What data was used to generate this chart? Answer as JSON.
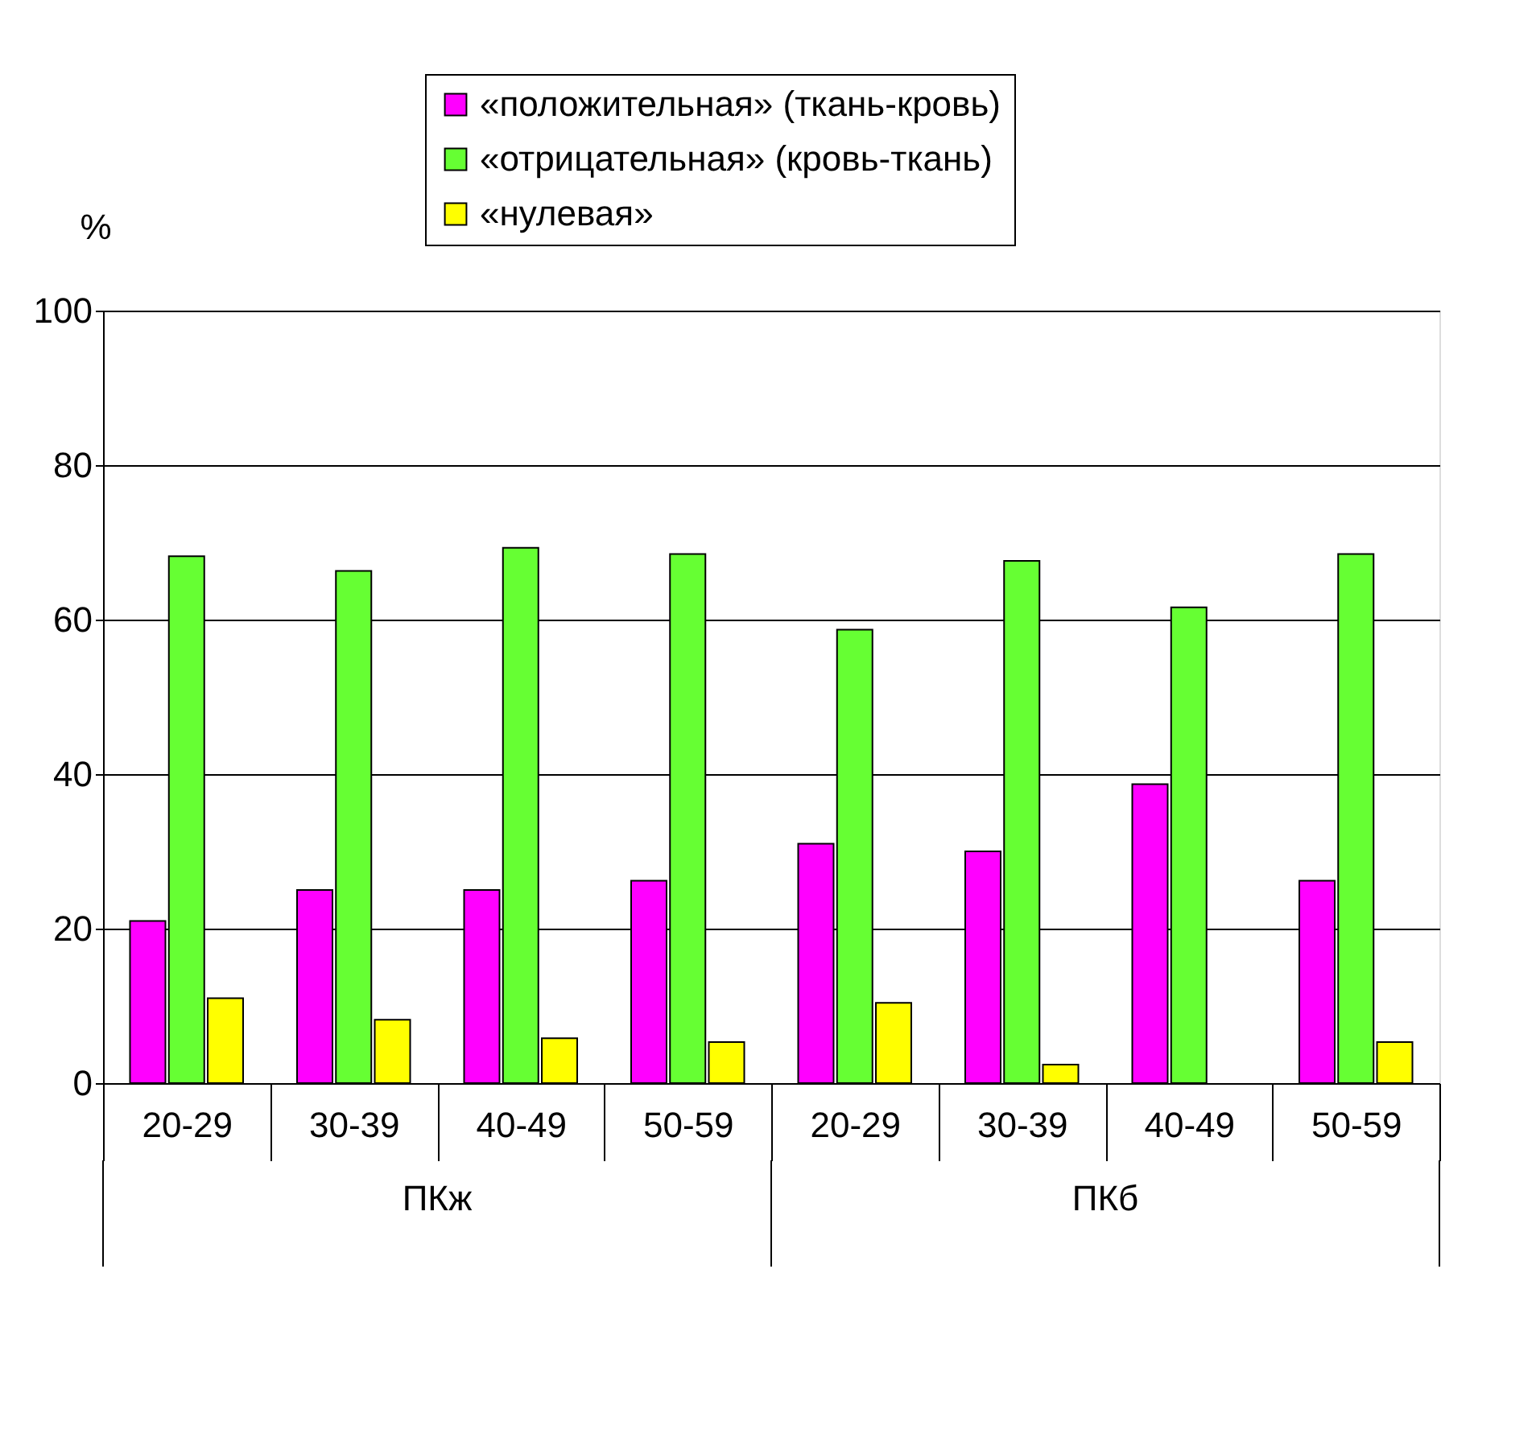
{
  "chart_data": {
    "type": "bar",
    "ylabel": "%",
    "categories": [
      "20-29",
      "30-39",
      "40-49",
      "50-59",
      "20-29",
      "30-39",
      "40-49",
      "50-59"
    ],
    "series": [
      {
        "name": "«положительная» (ткань-кровь)",
        "color": "#ff00ff",
        "values": [
          21,
          25,
          25,
          26.2,
          31,
          30,
          38.7,
          26.2
        ]
      },
      {
        "name": "«отрицательная» (кровь-ткань)",
        "color": "#66ff33",
        "values": [
          68.2,
          66.3,
          69.3,
          68.5,
          58.7,
          67.6,
          61.6,
          68.5
        ]
      },
      {
        "name": "«нулевая»",
        "color": "#ffff00",
        "values": [
          11,
          8.2,
          5.8,
          5.3,
          10.4,
          2.4,
          null,
          5.3
        ]
      }
    ],
    "annotations": [
      "ПКж",
      "ПКб"
    ],
    "ylim": [
      0,
      100
    ],
    "yticks": [
      0,
      20,
      40,
      60,
      80,
      100
    ],
    "grid": "y",
    "legend": "top right"
  }
}
